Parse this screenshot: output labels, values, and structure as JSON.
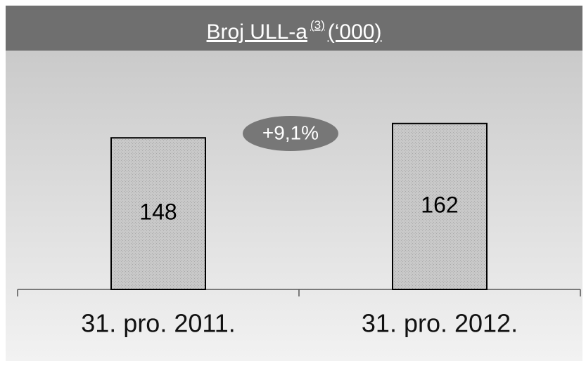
{
  "chart_data": {
    "type": "bar",
    "title": "Broj ULL-a",
    "title_note": "(3)",
    "title_unit": "(‘000)",
    "categories": [
      "31. pro. 2011.",
      "31. pro. 2012."
    ],
    "values": [
      148,
      162
    ],
    "color": "#bdbdbd",
    "annotation": "+9,1%"
  }
}
